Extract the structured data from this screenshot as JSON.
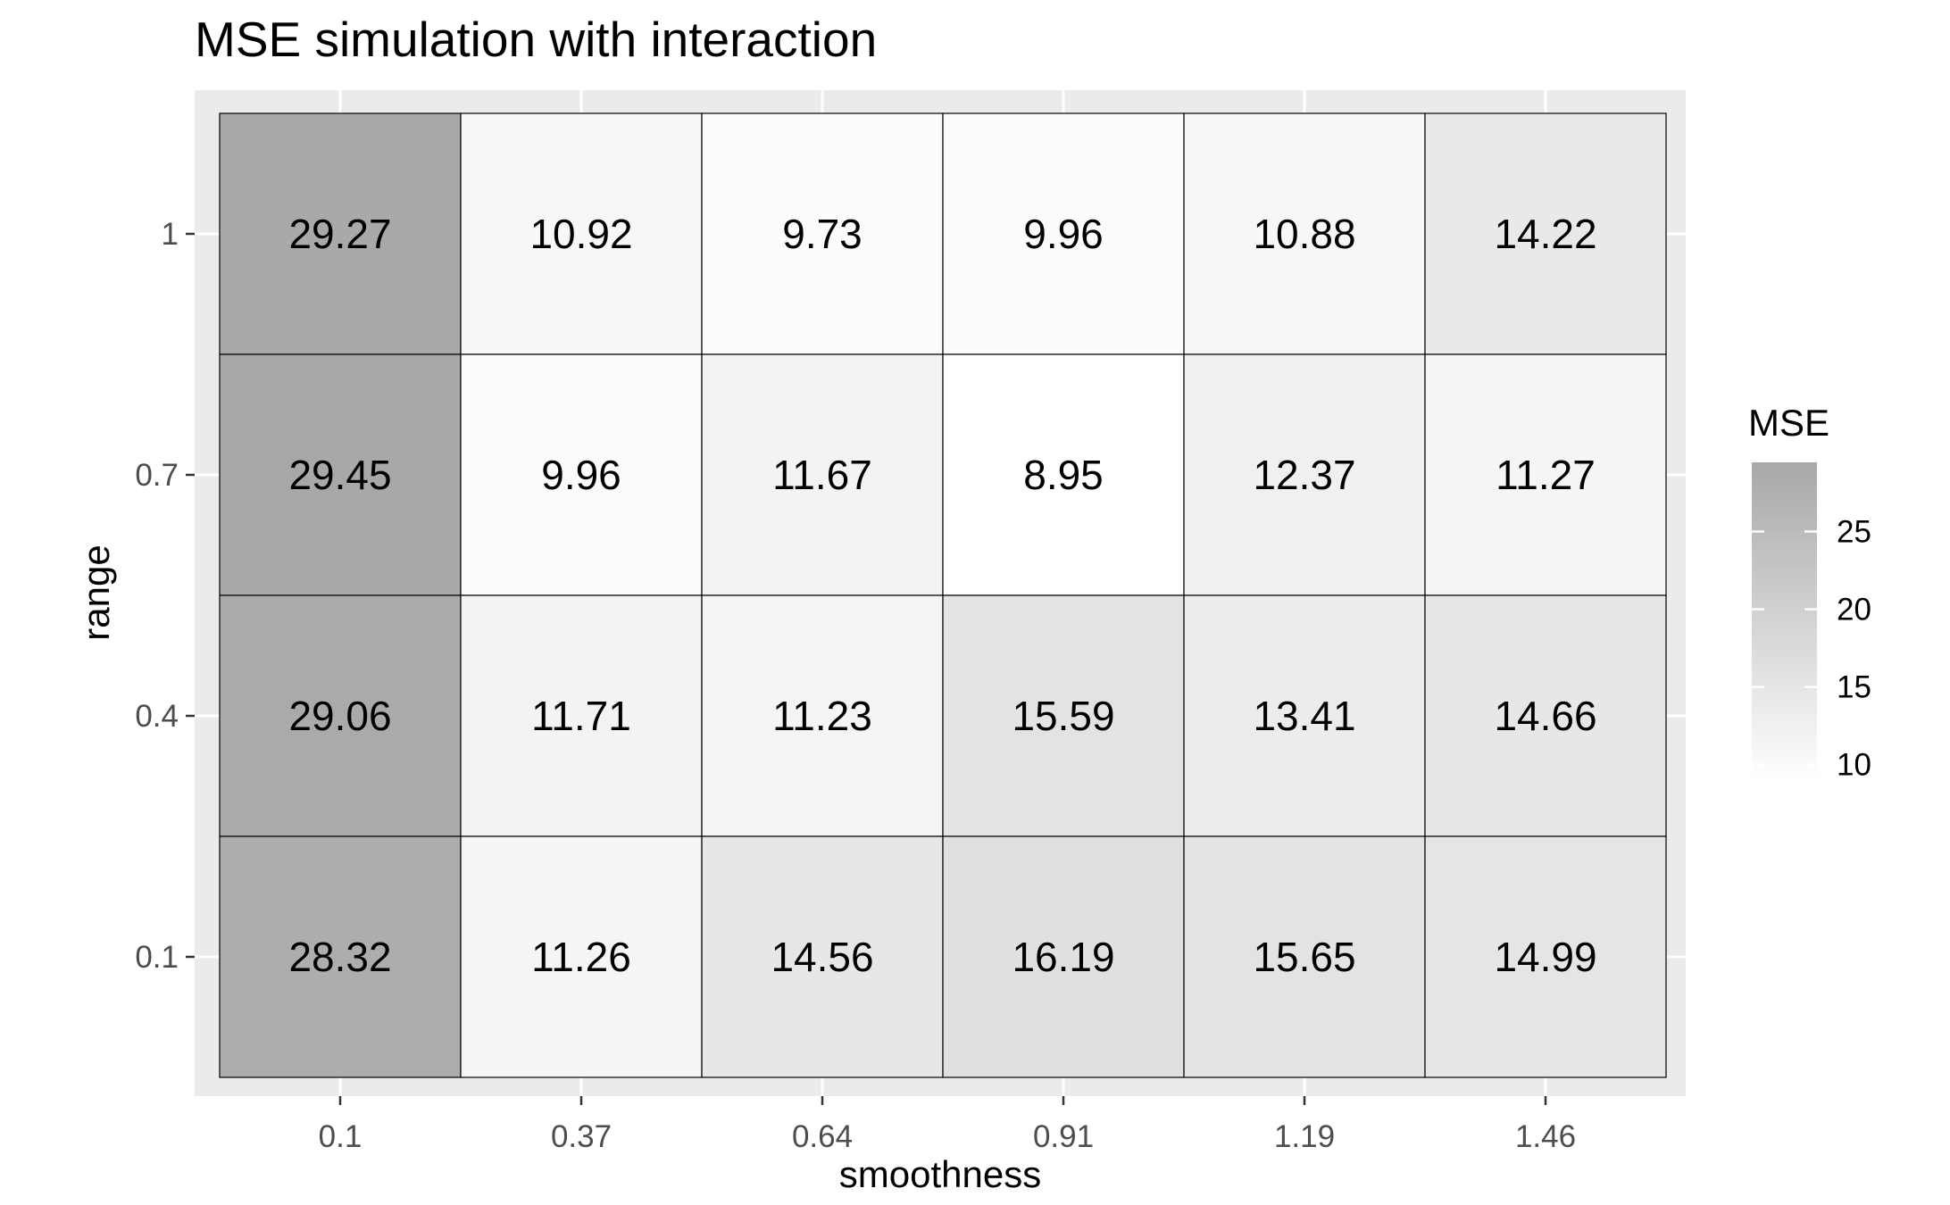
{
  "chart_data": {
    "type": "heatmap",
    "title": "MSE simulation with interaction",
    "xlabel": "smoothness",
    "ylabel": "range",
    "x_categories": [
      "0.1",
      "0.37",
      "0.64",
      "0.91",
      "1.19",
      "1.46"
    ],
    "y_categories": [
      "1",
      "0.7",
      "0.4",
      "0.1"
    ],
    "values": [
      [
        29.27,
        10.92,
        9.73,
        9.96,
        10.88,
        14.22
      ],
      [
        29.45,
        9.96,
        11.67,
        8.95,
        12.37,
        11.27
      ],
      [
        29.06,
        11.71,
        11.23,
        15.59,
        13.41,
        14.66
      ],
      [
        28.32,
        11.26,
        14.56,
        16.19,
        15.65,
        14.99
      ]
    ],
    "cell_labels": [
      [
        "29.27",
        "10.92",
        "9.73",
        "9.96",
        "10.88",
        "14.22"
      ],
      [
        "29.45",
        "9.96",
        "11.67",
        "8.95",
        "12.37",
        "11.27"
      ],
      [
        "29.06",
        "11.71",
        "11.23",
        "15.59",
        "13.41",
        "14.66"
      ],
      [
        "28.32",
        "11.26",
        "14.56",
        "16.19",
        "15.65",
        "14.99"
      ]
    ],
    "legend": {
      "title": "MSE",
      "ticks": [
        10,
        15,
        20,
        25
      ],
      "tick_labels": [
        "10",
        "15",
        "20",
        "25"
      ],
      "range": [
        8.95,
        29.45
      ],
      "placement": "right"
    },
    "colors": {
      "low": "#ffffff",
      "high": "#a8a8a8",
      "panel_background": "#ebebeb",
      "grid": "#ffffff",
      "cell_border": "#000000"
    },
    "grid": true
  }
}
